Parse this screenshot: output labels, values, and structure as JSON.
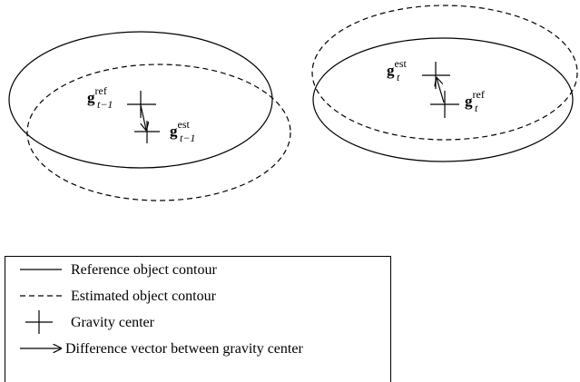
{
  "diagram": {
    "labels": [
      {
        "base": "g",
        "sup": "ref",
        "sub": "t−1"
      },
      {
        "base": "g",
        "sup": "est",
        "sub": "t−1"
      },
      {
        "base": "g",
        "sup": "est",
        "sub": "t"
      },
      {
        "base": "g",
        "sup": "ref",
        "sub": "t"
      }
    ],
    "legend": [
      "Reference object contour",
      "Estimated object contour",
      "Gravity center",
      "Difference vector between gravity center"
    ]
  }
}
